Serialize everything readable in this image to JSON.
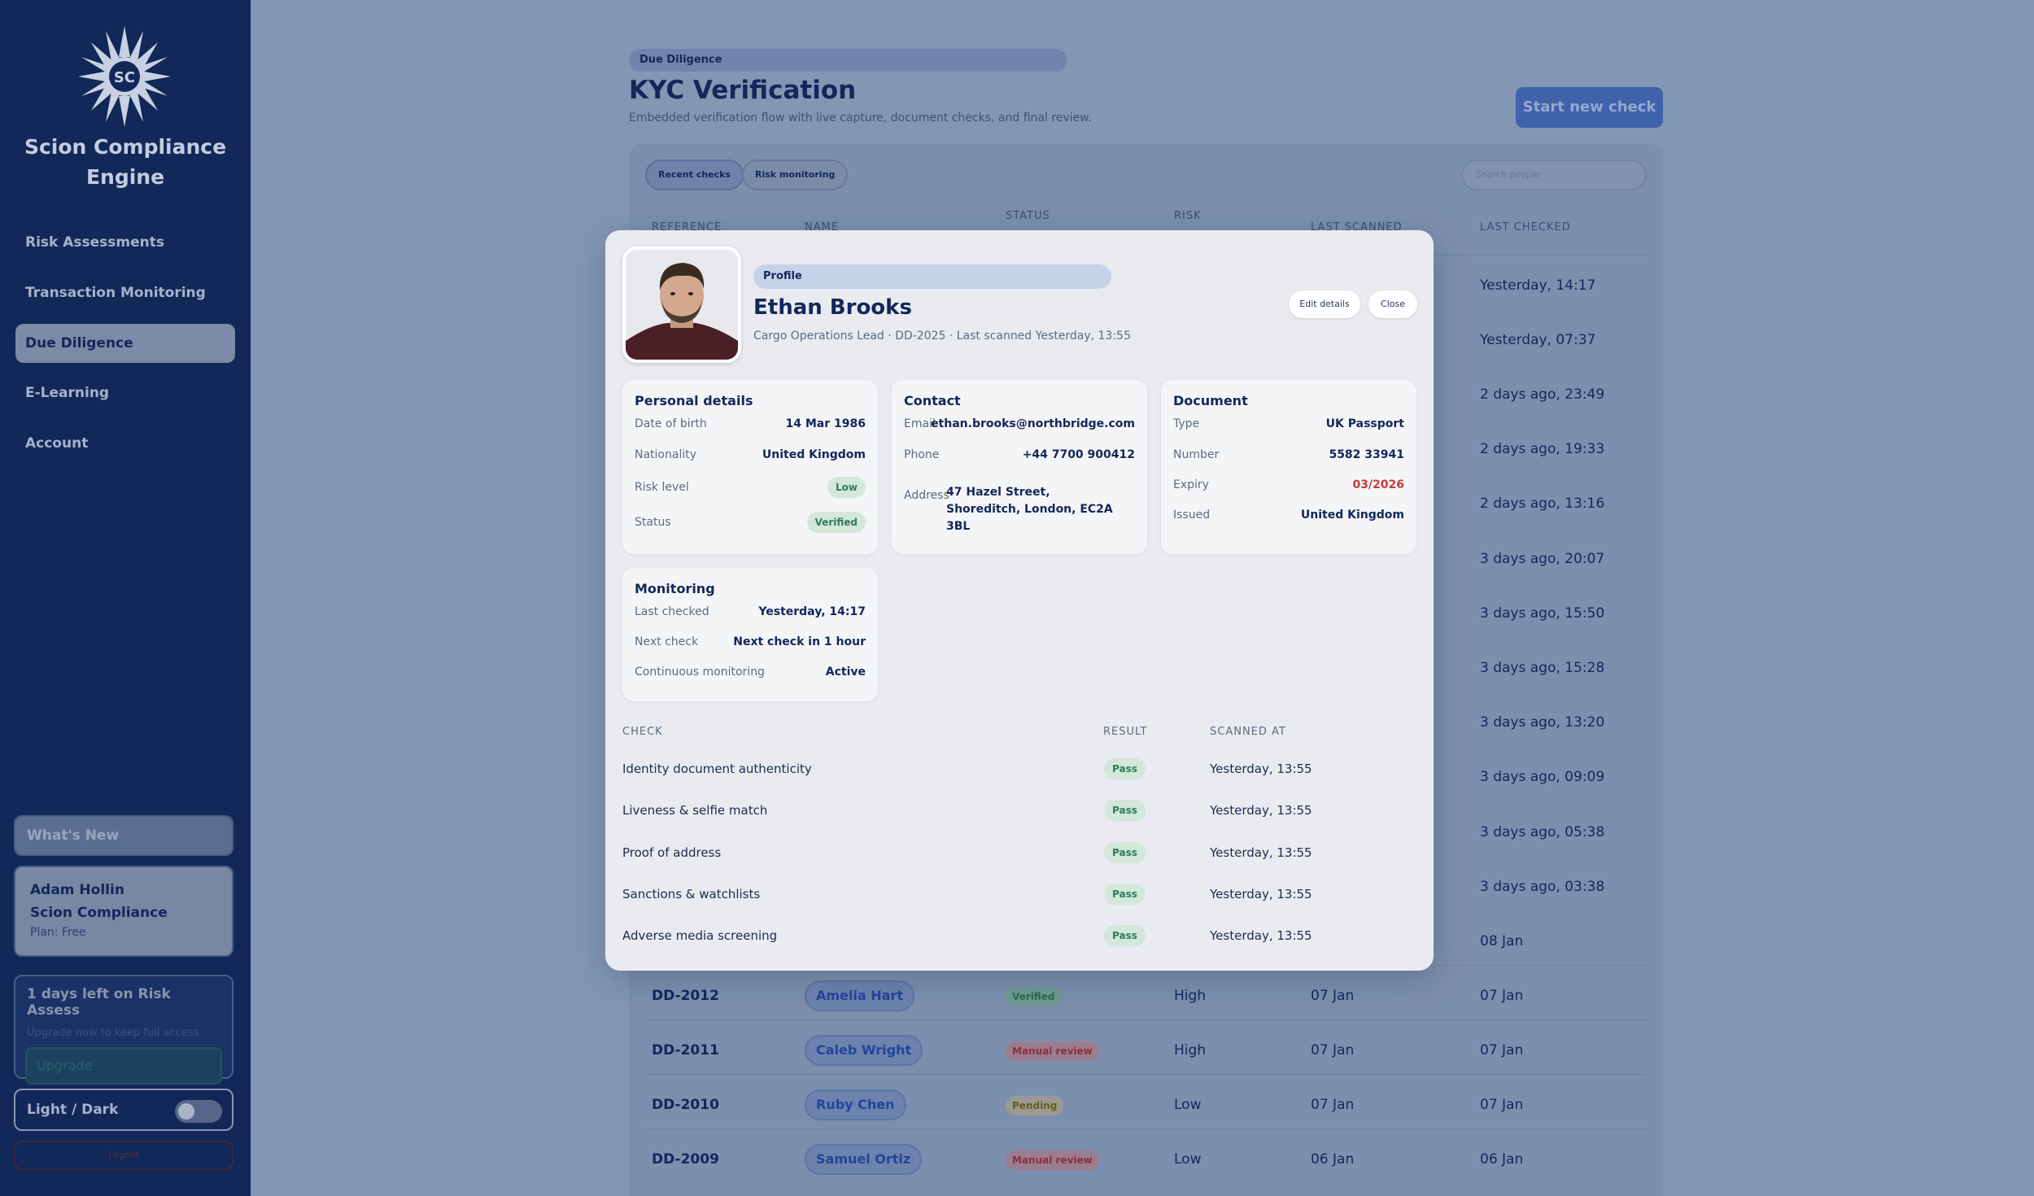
{
  "sidebar": {
    "brand": "Scion Compliance Engine",
    "brand_line1": "Scion Compliance",
    "brand_line2": "Engine",
    "logo_text": "SC",
    "nav": [
      {
        "label": "Risk Assessments",
        "active": false
      },
      {
        "label": "Transaction Monitoring",
        "active": false
      },
      {
        "label": "Due Diligence",
        "active": true
      },
      {
        "label": "E-Learning",
        "active": false
      },
      {
        "label": "Account",
        "active": false
      }
    ],
    "whats_new": "What's New",
    "user": {
      "name": "Adam Hollin",
      "org": "Scion Compliance",
      "plan": "Plan: Free"
    },
    "trial": {
      "title": "1 days left on Risk Assess",
      "subtitle": "Upgrade now to keep full access.",
      "button": "Upgrade"
    },
    "theme_label": "Light / Dark",
    "logout": "Logout"
  },
  "header": {
    "breadcrumb": "Due Diligence",
    "title": "KYC Verification",
    "subtitle": "Embedded verification flow with live capture, document checks, and final review.",
    "start_button": "Start new check"
  },
  "table": {
    "filters": [
      "Recent checks",
      "Risk monitoring"
    ],
    "search_placeholder": "Search people",
    "columns": [
      "REFERENCE",
      "NAME",
      "STATUS",
      "RISK",
      "LAST SCANNED",
      "LAST CHECKED"
    ],
    "last_checked_column": [
      "Yesterday, 14:17",
      "Yesterday, 07:37",
      "2 days ago, 23:49",
      "2 days ago, 19:33",
      "2 days ago, 13:16",
      "3 days ago, 20:07",
      "3 days ago, 15:50",
      "3 days ago, 15:28",
      "3 days ago, 13:20",
      "3 days ago, 09:09",
      "3 days ago, 05:38",
      "3 days ago, 03:38",
      "08 Jan"
    ],
    "visible_rows": [
      {
        "ref": "DD-2012",
        "name": "Amelia Hart",
        "status": "Verified",
        "status_kind": "verified",
        "risk": "High",
        "scanned": "07 Jan",
        "checked": "07 Jan"
      },
      {
        "ref": "DD-2011",
        "name": "Caleb Wright",
        "status": "Manual review",
        "status_kind": "review",
        "risk": "High",
        "scanned": "07 Jan",
        "checked": "07 Jan"
      },
      {
        "ref": "DD-2010",
        "name": "Ruby Chen",
        "status": "Pending",
        "status_kind": "pending",
        "risk": "Low",
        "scanned": "07 Jan",
        "checked": "07 Jan"
      },
      {
        "ref": "DD-2009",
        "name": "Samuel Ortiz",
        "status": "Manual review",
        "status_kind": "review",
        "risk": "Low",
        "scanned": "06 Jan",
        "checked": "06 Jan"
      }
    ]
  },
  "modal": {
    "profile_label": "Profile",
    "name": "Ethan Brooks",
    "subtitle": "Cargo Operations Lead · DD-2025 · Last scanned Yesterday, 13:55",
    "edit_button": "Edit details",
    "close_button": "Close",
    "personal": {
      "title": "Personal details",
      "dob_label": "Date of birth",
      "dob": "14 Mar 1986",
      "nationality_label": "Nationality",
      "nationality": "United Kingdom",
      "risk_label": "Risk level",
      "risk": "Low",
      "status_label": "Status",
      "status": "Verified"
    },
    "contact": {
      "title": "Contact",
      "email_label": "Email",
      "email": "ethan.brooks@northbridge.com",
      "phone_label": "Phone",
      "phone": "+44 7700 900412",
      "address_label": "Address",
      "address": "47 Hazel Street, Shoreditch, London, EC2A 3BL"
    },
    "document": {
      "title": "Document",
      "type_label": "Type",
      "type": "UK Passport",
      "number_label": "Number",
      "number": "5582 33941",
      "expiry_label": "Expiry",
      "expiry": "03/2026",
      "issued_label": "Issued",
      "issued": "United Kingdom"
    },
    "monitoring": {
      "title": "Monitoring",
      "last_label": "Last checked",
      "last": "Yesterday, 14:17",
      "next_label": "Next check",
      "next": "Next check in 1 hour",
      "continuous_label": "Continuous monitoring",
      "continuous": "Active"
    },
    "checks_columns": [
      "CHECK",
      "RESULT",
      "SCANNED AT"
    ],
    "checks": [
      {
        "name": "Identity document authenticity",
        "result": "Pass",
        "time": "Yesterday, 13:55"
      },
      {
        "name": "Liveness & selfie match",
        "result": "Pass",
        "time": "Yesterday, 13:55"
      },
      {
        "name": "Proof of address",
        "result": "Pass",
        "time": "Yesterday, 13:55"
      },
      {
        "name": "Sanctions & watchlists",
        "result": "Pass",
        "time": "Yesterday, 13:55"
      },
      {
        "name": "Adverse media screening",
        "result": "Pass",
        "time": "Yesterday, 13:55"
      }
    ]
  },
  "colors": {
    "sidebar": "#112858",
    "accent": "#4062ab",
    "pass": "#2f7d55",
    "danger": "#c43b3b"
  }
}
